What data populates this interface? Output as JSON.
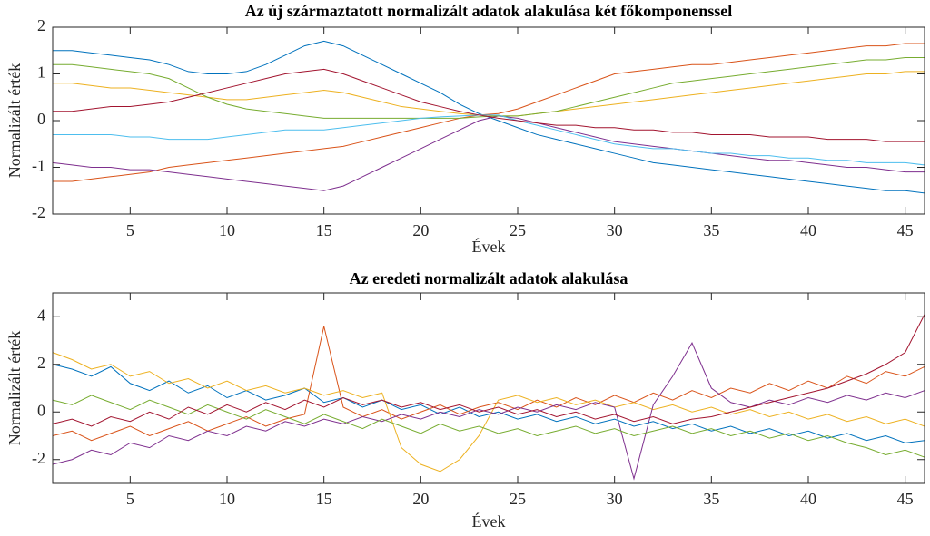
{
  "chart_data": [
    {
      "type": "line",
      "title": "Az új származtatott normalizált adatok alakulása két főkomponenssel",
      "xlabel": "Évek",
      "ylabel": "Normalizált érték",
      "x": [
        1,
        2,
        3,
        4,
        5,
        6,
        7,
        8,
        9,
        10,
        11,
        12,
        13,
        14,
        15,
        16,
        17,
        18,
        19,
        20,
        21,
        22,
        23,
        24,
        25,
        26,
        27,
        28,
        29,
        30,
        31,
        32,
        33,
        34,
        35,
        36,
        37,
        38,
        39,
        40,
        41,
        42,
        43,
        44,
        45,
        46
      ],
      "xlim": [
        1,
        46
      ],
      "xticks": [
        5,
        10,
        15,
        20,
        25,
        30,
        35,
        40,
        45
      ],
      "ylim": [
        -2,
        2
      ],
      "yticks": [
        -2,
        -1,
        0,
        1,
        2
      ],
      "series": [
        {
          "color": "#0072BD",
          "values": [
            1.5,
            1.5,
            1.45,
            1.4,
            1.35,
            1.3,
            1.2,
            1.05,
            1.0,
            1.0,
            1.05,
            1.2,
            1.4,
            1.6,
            1.7,
            1.6,
            1.4,
            1.2,
            1.0,
            0.8,
            0.6,
            0.35,
            0.15,
            0.0,
            -0.15,
            -0.3,
            -0.4,
            -0.5,
            -0.6,
            -0.7,
            -0.8,
            -0.9,
            -0.95,
            -1.0,
            -1.05,
            -1.1,
            -1.15,
            -1.2,
            -1.25,
            -1.3,
            -1.35,
            -1.4,
            -1.45,
            -1.5,
            -1.5,
            -1.55
          ]
        },
        {
          "color": "#D95319",
          "values": [
            -1.3,
            -1.3,
            -1.25,
            -1.2,
            -1.15,
            -1.1,
            -1.0,
            -0.95,
            -0.9,
            -0.85,
            -0.8,
            -0.75,
            -0.7,
            -0.65,
            -0.6,
            -0.55,
            -0.45,
            -0.35,
            -0.25,
            -0.15,
            -0.05,
            0.05,
            0.12,
            0.15,
            0.25,
            0.4,
            0.55,
            0.7,
            0.85,
            1.0,
            1.05,
            1.1,
            1.15,
            1.2,
            1.2,
            1.25,
            1.3,
            1.35,
            1.4,
            1.45,
            1.5,
            1.55,
            1.6,
            1.6,
            1.65,
            1.65
          ]
        },
        {
          "color": "#EDB120",
          "values": [
            0.8,
            0.8,
            0.75,
            0.7,
            0.7,
            0.65,
            0.6,
            0.55,
            0.5,
            0.45,
            0.45,
            0.5,
            0.55,
            0.6,
            0.65,
            0.6,
            0.5,
            0.4,
            0.3,
            0.25,
            0.2,
            0.15,
            0.12,
            0.1,
            0.1,
            0.15,
            0.2,
            0.25,
            0.3,
            0.35,
            0.4,
            0.45,
            0.5,
            0.55,
            0.6,
            0.65,
            0.7,
            0.75,
            0.8,
            0.85,
            0.9,
            0.95,
            1.0,
            1.0,
            1.05,
            1.05
          ]
        },
        {
          "color": "#7E2F8E",
          "values": [
            -0.9,
            -0.95,
            -1.0,
            -1.0,
            -1.05,
            -1.05,
            -1.1,
            -1.15,
            -1.2,
            -1.25,
            -1.3,
            -1.35,
            -1.4,
            -1.45,
            -1.5,
            -1.4,
            -1.2,
            -1.0,
            -0.8,
            -0.6,
            -0.4,
            -0.2,
            0.0,
            0.1,
            0.05,
            -0.05,
            -0.15,
            -0.25,
            -0.35,
            -0.45,
            -0.5,
            -0.55,
            -0.6,
            -0.65,
            -0.7,
            -0.75,
            -0.8,
            -0.85,
            -0.85,
            -0.9,
            -0.95,
            -1.0,
            -1.0,
            -1.05,
            -1.1,
            -1.1
          ]
        },
        {
          "color": "#77AC30",
          "values": [
            1.2,
            1.2,
            1.15,
            1.1,
            1.05,
            1.0,
            0.9,
            0.7,
            0.5,
            0.35,
            0.25,
            0.2,
            0.15,
            0.1,
            0.05,
            0.05,
            0.05,
            0.05,
            0.05,
            0.05,
            0.05,
            0.05,
            0.08,
            0.1,
            0.1,
            0.15,
            0.2,
            0.3,
            0.4,
            0.5,
            0.6,
            0.7,
            0.8,
            0.85,
            0.9,
            0.95,
            1.0,
            1.05,
            1.1,
            1.15,
            1.2,
            1.25,
            1.3,
            1.3,
            1.35,
            1.35
          ]
        },
        {
          "color": "#4DBEEE",
          "values": [
            -0.3,
            -0.3,
            -0.3,
            -0.3,
            -0.35,
            -0.35,
            -0.4,
            -0.4,
            -0.4,
            -0.35,
            -0.3,
            -0.25,
            -0.2,
            -0.2,
            -0.2,
            -0.15,
            -0.1,
            -0.05,
            0.0,
            0.05,
            0.08,
            0.1,
            0.12,
            0.12,
            0.0,
            -0.1,
            -0.2,
            -0.3,
            -0.4,
            -0.5,
            -0.55,
            -0.6,
            -0.6,
            -0.65,
            -0.7,
            -0.7,
            -0.75,
            -0.75,
            -0.8,
            -0.8,
            -0.85,
            -0.85,
            -0.9,
            -0.9,
            -0.9,
            -0.95
          ]
        },
        {
          "color": "#A2142F",
          "values": [
            0.2,
            0.2,
            0.25,
            0.3,
            0.3,
            0.35,
            0.4,
            0.5,
            0.6,
            0.7,
            0.8,
            0.9,
            1.0,
            1.05,
            1.1,
            1.0,
            0.85,
            0.7,
            0.55,
            0.4,
            0.3,
            0.2,
            0.12,
            0.05,
            0.0,
            -0.05,
            -0.1,
            -0.1,
            -0.15,
            -0.15,
            -0.2,
            -0.2,
            -0.25,
            -0.25,
            -0.3,
            -0.3,
            -0.3,
            -0.35,
            -0.35,
            -0.35,
            -0.4,
            -0.4,
            -0.4,
            -0.45,
            -0.45,
            -0.45
          ]
        }
      ]
    },
    {
      "type": "line",
      "title": "Az eredeti normalizált adatok alakulása",
      "xlabel": "Évek",
      "ylabel": "Normalizált érték",
      "x": [
        1,
        2,
        3,
        4,
        5,
        6,
        7,
        8,
        9,
        10,
        11,
        12,
        13,
        14,
        15,
        16,
        17,
        18,
        19,
        20,
        21,
        22,
        23,
        24,
        25,
        26,
        27,
        28,
        29,
        30,
        31,
        32,
        33,
        34,
        35,
        36,
        37,
        38,
        39,
        40,
        41,
        42,
        43,
        44,
        45,
        46
      ],
      "xlim": [
        1,
        46
      ],
      "xticks": [
        5,
        10,
        15,
        20,
        25,
        30,
        35,
        40,
        45
      ],
      "ylim": [
        -3,
        5
      ],
      "yticks": [
        -2,
        0,
        2,
        4
      ],
      "series": [
        {
          "color": "#0072BD",
          "values": [
            2.0,
            1.8,
            1.5,
            1.9,
            1.2,
            0.9,
            1.3,
            0.8,
            1.1,
            0.6,
            0.9,
            0.5,
            0.7,
            1.0,
            0.4,
            0.6,
            0.2,
            0.5,
            0.1,
            0.3,
            -0.1,
            0.2,
            -0.2,
            0.0,
            -0.3,
            -0.1,
            -0.4,
            -0.2,
            -0.5,
            -0.3,
            -0.6,
            -0.4,
            -0.7,
            -0.5,
            -0.8,
            -0.6,
            -0.9,
            -0.7,
            -1.0,
            -0.8,
            -1.1,
            -0.9,
            -1.2,
            -1.0,
            -1.3,
            -1.2
          ]
        },
        {
          "color": "#D95319",
          "values": [
            -1.0,
            -0.8,
            -1.2,
            -0.9,
            -0.6,
            -1.0,
            -0.7,
            -0.4,
            -0.8,
            -0.5,
            -0.2,
            -0.6,
            -0.3,
            -0.1,
            3.6,
            0.2,
            -0.2,
            0.1,
            -0.3,
            0.0,
            0.3,
            -0.1,
            0.2,
            0.4,
            0.1,
            0.5,
            0.2,
            0.6,
            0.3,
            0.7,
            0.4,
            0.8,
            0.5,
            0.9,
            0.6,
            1.0,
            0.8,
            1.2,
            0.9,
            1.3,
            1.0,
            1.5,
            1.2,
            1.7,
            1.5,
            1.9
          ]
        },
        {
          "color": "#EDB120",
          "values": [
            2.5,
            2.2,
            1.8,
            2.0,
            1.5,
            1.7,
            1.2,
            1.4,
            1.0,
            1.3,
            0.9,
            1.1,
            0.8,
            1.0,
            0.7,
            0.9,
            0.6,
            0.8,
            -1.5,
            -2.2,
            -2.5,
            -2.0,
            -1.0,
            0.5,
            0.7,
            0.4,
            0.6,
            0.3,
            0.5,
            0.2,
            0.4,
            0.1,
            0.3,
            0.0,
            0.2,
            -0.1,
            0.1,
            -0.2,
            0.0,
            -0.3,
            -0.1,
            -0.4,
            -0.2,
            -0.5,
            -0.3,
            -0.6
          ]
        },
        {
          "color": "#7E2F8E",
          "values": [
            -2.2,
            -2.0,
            -1.6,
            -1.8,
            -1.3,
            -1.5,
            -1.0,
            -1.2,
            -0.8,
            -1.0,
            -0.6,
            -0.8,
            -0.4,
            -0.6,
            -0.3,
            -0.5,
            -0.2,
            -0.4,
            -0.1,
            -0.3,
            0.0,
            -0.2,
            0.1,
            -0.1,
            0.2,
            0.0,
            0.3,
            0.1,
            0.4,
            0.2,
            -2.8,
            0.3,
            1.5,
            2.9,
            1.0,
            0.4,
            0.2,
            0.5,
            0.3,
            0.6,
            0.4,
            0.7,
            0.5,
            0.8,
            0.6,
            0.9
          ]
        },
        {
          "color": "#77AC30",
          "values": [
            0.5,
            0.3,
            0.7,
            0.4,
            0.1,
            0.5,
            0.2,
            -0.1,
            0.3,
            0.0,
            -0.3,
            0.1,
            -0.2,
            -0.5,
            -0.1,
            -0.4,
            -0.7,
            -0.3,
            -0.6,
            -0.9,
            -0.5,
            -0.8,
            -0.6,
            -0.9,
            -0.7,
            -1.0,
            -0.8,
            -0.6,
            -0.9,
            -0.7,
            -1.0,
            -0.8,
            -0.6,
            -0.9,
            -0.7,
            -1.0,
            -0.8,
            -1.1,
            -0.9,
            -1.2,
            -1.0,
            -1.3,
            -1.5,
            -1.8,
            -1.6,
            -1.9
          ]
        },
        {
          "color": "#A2142F",
          "values": [
            -0.5,
            -0.3,
            -0.6,
            -0.2,
            -0.4,
            0.0,
            -0.3,
            0.2,
            -0.1,
            0.3,
            0.0,
            0.4,
            0.1,
            0.5,
            0.2,
            0.6,
            0.3,
            0.5,
            0.2,
            0.4,
            0.1,
            0.3,
            0.0,
            0.2,
            -0.1,
            0.1,
            -0.2,
            0.0,
            -0.3,
            -0.1,
            -0.4,
            -0.2,
            -0.5,
            -0.3,
            -0.2,
            0.0,
            0.2,
            0.4,
            0.6,
            0.8,
            1.0,
            1.3,
            1.6,
            2.0,
            2.5,
            4.1
          ]
        }
      ]
    }
  ]
}
